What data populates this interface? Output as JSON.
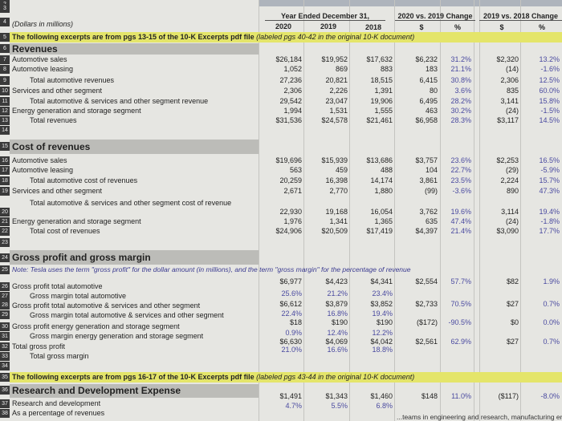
{
  "units_note": "(Dollars in millions)",
  "header": {
    "year_ended": "Year Ended December 31,",
    "y2020": "2020",
    "y2019": "2019",
    "y2018": "2018",
    "chg1": "2020 vs. 2019 Change",
    "chg2": "2019 vs. 2018 Change",
    "dollar": "$",
    "pct": "%"
  },
  "excerpt1": {
    "bold": "The following excerpts are from pgs 13-15 of the 10-K Excerpts pdf file",
    "italic": "(labeled pgs 40-42 in the original 10-K document)"
  },
  "excerpt2": {
    "bold": "The following excerpts are from pgs 16-17 of the 10-K Excerpts pdf file",
    "italic": "(labeled pgs 43-44 in the original 10-K document)"
  },
  "sections": {
    "revenues": "Revenues",
    "cost": "Cost of revenues",
    "gross": "Gross profit and gross margin",
    "rd": "Research and Development Expense"
  },
  "gross_note": "Note: Tesla uses the term \"gross profit\" for the dollar amount (in millions), and the term \"gross margin\" for the percentage of revenue",
  "footer_text": "...teams in engineering and research, manufacturing engineering and",
  "row_numbers": [
    "2",
    "3",
    "4",
    "5",
    "6",
    "7",
    "8",
    "9",
    "10",
    "11",
    "12",
    "13",
    "14",
    "15",
    "16",
    "17",
    "18",
    "19",
    "20",
    "21",
    "22",
    "23",
    "24",
    "25",
    "26",
    "27",
    "28",
    "29",
    "30",
    "31",
    "32",
    "33",
    "34",
    "35",
    "36",
    "37",
    "38"
  ],
  "rows": [
    {
      "n": "7",
      "label": "Automotive sales",
      "indent": 0,
      "vals": [
        "$26,184",
        "$19,952",
        "$17,632",
        "$6,232",
        "31.2%",
        "$2,320",
        "13.2%"
      ]
    },
    {
      "n": "8",
      "label": "Automotive leasing",
      "indent": 0,
      "vals": [
        "1,052",
        "869",
        "883",
        "183",
        "21.1%",
        "(14)",
        "-1.6%"
      ]
    },
    {
      "n": "9",
      "label": "Total automotive revenues",
      "indent": 1,
      "vals": [
        "27,236",
        "20,821",
        "18,515",
        "6,415",
        "30.8%",
        "2,306",
        "12.5%"
      ]
    },
    {
      "n": "10",
      "label": "Services and other segment",
      "indent": 0,
      "vals": [
        "2,306",
        "2,226",
        "1,391",
        "80",
        "3.6%",
        "835",
        "60.0%"
      ]
    },
    {
      "n": "11",
      "label": "Total automotive & services and other segment revenue",
      "indent": 1,
      "vals": [
        "29,542",
        "23,047",
        "19,906",
        "6,495",
        "28.2%",
        "3,141",
        "15.8%"
      ]
    },
    {
      "n": "12",
      "label": "Energy generation and storage segment",
      "indent": 0,
      "vals": [
        "1,994",
        "1,531",
        "1,555",
        "463",
        "30.2%",
        "(24)",
        "-1.5%"
      ]
    },
    {
      "n": "13",
      "label": "Total revenues",
      "indent": 1,
      "vals": [
        "$31,536",
        "$24,578",
        "$21,461",
        "$6,958",
        "28.3%",
        "$3,117",
        "14.5%"
      ]
    },
    {
      "n": "16",
      "label": "Automotive sales",
      "indent": 0,
      "vals": [
        "$19,696",
        "$15,939",
        "$13,686",
        "$3,757",
        "23.6%",
        "$2,253",
        "16.5%"
      ]
    },
    {
      "n": "17",
      "label": "Automotive leasing",
      "indent": 0,
      "vals": [
        "563",
        "459",
        "488",
        "104",
        "22.7%",
        "(29)",
        "-5.9%"
      ]
    },
    {
      "n": "18",
      "label": "Total automotive cost of revenues",
      "indent": 1,
      "vals": [
        "20,259",
        "16,398",
        "14,174",
        "3,861",
        "23.5%",
        "2,224",
        "15.7%"
      ]
    },
    {
      "n": "19",
      "label": "Services and other segment",
      "indent": 0,
      "vals": [
        "2,671",
        "2,770",
        "1,880",
        "(99)",
        "-3.6%",
        "890",
        "47.3%"
      ]
    },
    {
      "n": "20",
      "label": "Total automotive & services and other segment cost of revenue",
      "indent": 1,
      "vals": [
        "22,930",
        "19,168",
        "16,054",
        "3,762",
        "19.6%",
        "3,114",
        "19.4%"
      ]
    },
    {
      "n": "21",
      "label": "Energy generation and storage segment",
      "indent": 0,
      "vals": [
        "1,976",
        "1,341",
        "1,365",
        "635",
        "47.4%",
        "(24)",
        "-1.8%"
      ]
    },
    {
      "n": "22",
      "label": "Total cost of revenues",
      "indent": 1,
      "vals": [
        "$24,906",
        "$20,509",
        "$17,419",
        "$4,397",
        "21.4%",
        "$3,090",
        "17.7%"
      ]
    },
    {
      "n": "26",
      "label": "Gross profit total automotive",
      "indent": 0,
      "vals": [
        "$6,977",
        "$4,423",
        "$4,341",
        "$2,554",
        "57.7%",
        "$82",
        "1.9%"
      ]
    },
    {
      "n": "27",
      "label": "Gross margin total automotive",
      "indent": 1,
      "vals": [
        "25.6%",
        "21.2%",
        "23.4%",
        "",
        "",
        "",
        ""
      ]
    },
    {
      "n": "28",
      "label": "Gross profit total automotive & services and other segment",
      "indent": 0,
      "vals": [
        "$6,612",
        "$3,879",
        "$3,852",
        "$2,733",
        "70.5%",
        "$27",
        "0.7%"
      ]
    },
    {
      "n": "29",
      "label": "Gross margin total automotive & services and other segment",
      "indent": 1,
      "vals": [
        "22.4%",
        "16.8%",
        "19.4%",
        "",
        "",
        "",
        ""
      ]
    },
    {
      "n": "30",
      "label": "Gross profit energy generation and storage segment",
      "indent": 0,
      "vals": [
        "$18",
        "$190",
        "$190",
        "($172)",
        "-90.5%",
        "$0",
        "0.0%"
      ]
    },
    {
      "n": "31",
      "label": "Gross margin energy generation and storage segment",
      "indent": 1,
      "vals": [
        "0.9%",
        "12.4%",
        "12.2%",
        "",
        "",
        "",
        ""
      ]
    },
    {
      "n": "32",
      "label": "Total gross profit",
      "indent": 0,
      "vals": [
        "$6,630",
        "$4,069",
        "$4,042",
        "$2,561",
        "62.9%",
        "$27",
        "0.7%"
      ]
    },
    {
      "n": "33",
      "label": "Total gross margin",
      "indent": 1,
      "vals": [
        "21.0%",
        "16.6%",
        "18.8%",
        "",
        "",
        "",
        ""
      ]
    },
    {
      "n": "37",
      "label": "Research and development",
      "indent": 0,
      "vals": [
        "$1,491",
        "$1,343",
        "$1,460",
        "$148",
        "11.0%",
        "($117)",
        "-8.0%"
      ]
    },
    {
      "n": "38",
      "label": "As a percentage of revenues",
      "indent": 0,
      "vals": [
        "4.7%",
        "5.5%",
        "6.8%",
        "",
        "",
        "",
        ""
      ]
    }
  ],
  "colors": {
    "highlight": "#e4e56a",
    "section_band": "#bcbcb8",
    "percent_text": "#4a4aa0"
  }
}
